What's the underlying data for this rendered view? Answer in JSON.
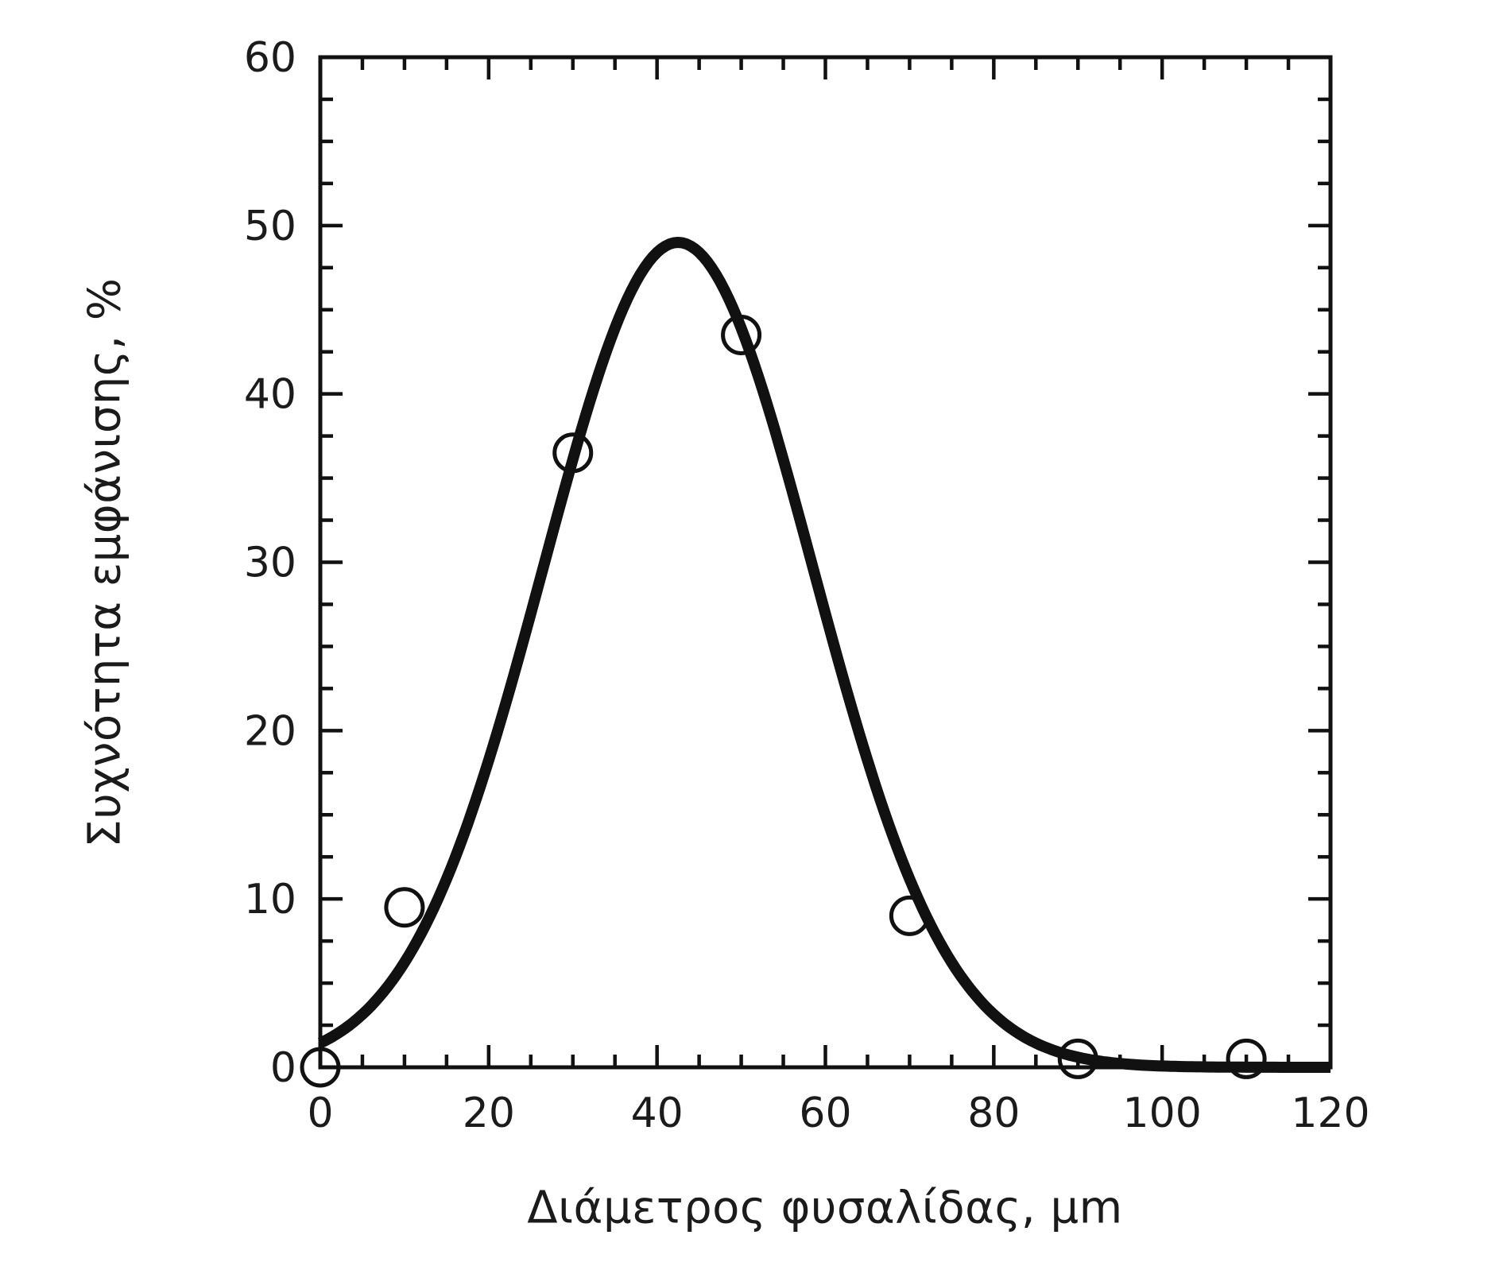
{
  "chart_data": {
    "type": "scatter",
    "title": "",
    "xlabel": "Διάμετρος φυσαλίδας, μm",
    "ylabel": "Συχνότητα εμφάνισης, %",
    "xlim": [
      0,
      120
    ],
    "ylim": [
      0,
      60
    ],
    "x_major_ticks": [
      0,
      20,
      40,
      60,
      80,
      100,
      120
    ],
    "x_minor_step": 5,
    "y_major_ticks": [
      0,
      10,
      20,
      30,
      40,
      50,
      60
    ],
    "y_minor_step": 2.5,
    "tick_direction": "in",
    "frame": "full-box",
    "grid": false,
    "legend": null,
    "points": [
      {
        "x": 0,
        "y": 0
      },
      {
        "x": 10,
        "y": 9.5
      },
      {
        "x": 30,
        "y": 36.5
      },
      {
        "x": 50,
        "y": 43.5
      },
      {
        "x": 70,
        "y": 9
      },
      {
        "x": 90,
        "y": 0.5
      },
      {
        "x": 110,
        "y": 0.5
      }
    ],
    "fit_curve": {
      "shape": "gaussian",
      "amplitude": 49,
      "mean": 42.5,
      "sigma": 16
    },
    "colors": {
      "ink": "#111111",
      "tick_label": "#1b1b1b",
      "background": "#ffffff"
    }
  }
}
